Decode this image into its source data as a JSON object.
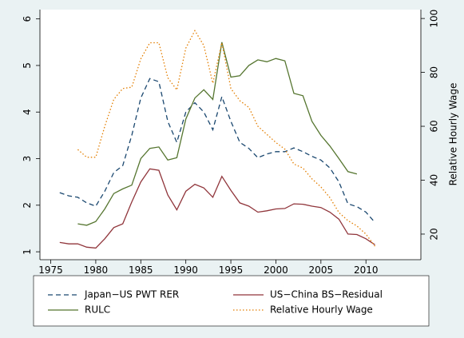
{
  "chart_data": {
    "type": "line",
    "x": [
      1976,
      1977,
      1978,
      1979,
      1980,
      1981,
      1982,
      1983,
      1984,
      1985,
      1986,
      1987,
      1988,
      1989,
      1990,
      1991,
      1992,
      1993,
      1994,
      1995,
      1996,
      1997,
      1998,
      1999,
      2000,
      2001,
      2002,
      2003,
      2004,
      2005,
      2006,
      2007,
      2008,
      2009,
      2010,
      2011
    ],
    "xlim": [
      1973.8,
      2016.1
    ],
    "xticks": [
      1975,
      1980,
      1985,
      1990,
      1995,
      2000,
      2005,
      2010
    ],
    "ylim": [
      0.83,
      6.2
    ],
    "yticks": [
      1,
      2,
      3,
      4,
      5,
      6
    ],
    "y2lim": [
      10.5,
      103.3
    ],
    "y2ticks": [
      20,
      40,
      60,
      80,
      100
    ],
    "y2label": "Relative Hourly Wage",
    "legend": "bottom",
    "series": [
      {
        "name": "Japan−US PWT RER",
        "color": "#1a476f",
        "dash": "dash",
        "values": [
          2.27,
          2.2,
          2.17,
          2.05,
          1.98,
          2.3,
          2.7,
          2.85,
          3.5,
          4.3,
          4.72,
          4.65,
          3.8,
          3.35,
          4.0,
          4.2,
          4.0,
          3.62,
          4.33,
          3.8,
          3.35,
          3.22,
          3.02,
          3.1,
          3.15,
          3.15,
          3.23,
          3.15,
          3.05,
          2.97,
          2.8,
          2.5,
          2.03,
          1.97,
          1.85,
          1.63
        ]
      },
      {
        "name": "US−China BS−Residual",
        "color": "#90353b",
        "dash": "solid",
        "values": [
          1.2,
          1.17,
          1.17,
          1.1,
          1.08,
          1.28,
          1.52,
          1.6,
          2.07,
          2.5,
          2.78,
          2.75,
          2.22,
          1.9,
          2.3,
          2.45,
          2.37,
          2.17,
          2.62,
          2.32,
          2.05,
          1.98,
          1.85,
          1.88,
          1.92,
          1.93,
          2.03,
          2.02,
          1.98,
          1.95,
          1.85,
          1.7,
          1.38,
          1.37,
          1.28,
          1.15
        ]
      },
      {
        "name": "RULC",
        "color": "#55752f",
        "dash": "solid",
        "values": [
          null,
          null,
          1.6,
          1.57,
          1.65,
          1.92,
          2.25,
          2.35,
          2.43,
          3.0,
          3.22,
          3.25,
          2.97,
          3.02,
          3.85,
          4.3,
          4.48,
          4.27,
          5.5,
          4.75,
          4.78,
          5.0,
          5.12,
          5.08,
          5.15,
          5.1,
          4.4,
          4.35,
          3.8,
          3.5,
          3.27,
          3.0,
          2.72,
          2.67,
          null,
          null
        ]
      },
      {
        "name": "Relative Hourly Wage",
        "color": "#e37e00",
        "dash": "dot",
        "axis": "y2",
        "values": [
          null,
          null,
          51.4,
          48.5,
          48.5,
          60,
          70,
          74,
          74.5,
          85,
          91,
          91,
          78,
          73.5,
          89,
          95.5,
          90,
          76,
          91,
          74,
          69.5,
          67,
          60,
          57,
          54,
          51.5,
          46,
          44.5,
          40.5,
          37.5,
          33.5,
          28,
          25,
          23,
          20,
          15.5
        ]
      }
    ]
  }
}
